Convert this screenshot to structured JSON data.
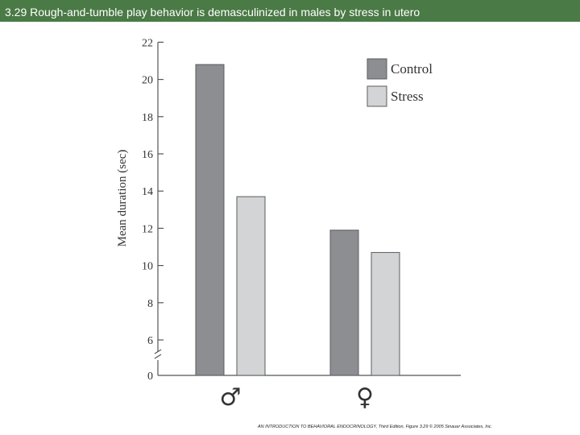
{
  "slide": {
    "title": "3.29 Rough-and-tumble play behavior is demasculinized in males by stress in utero",
    "credit": "AN INTRODUCTION TO BEHAVIORAL ENDOCRINOLOGY, Third Edition, Figure 3.29 © 2005 Sinauer Associates, Inc."
  },
  "chart_data": {
    "type": "bar",
    "title": "",
    "ylabel": "Mean duration (sec)",
    "xlabel": "",
    "categories": [
      "♂",
      "♀"
    ],
    "series": [
      {
        "name": "Control",
        "color": "#8c8e91",
        "values": [
          20.8,
          11.9
        ]
      },
      {
        "name": "Stress",
        "color": "#d3d4d6",
        "values": [
          13.7,
          10.7
        ]
      }
    ],
    "yticks": [
      0,
      6,
      8,
      10,
      12,
      14,
      16,
      18,
      20,
      22
    ],
    "ylim": [
      0,
      22
    ],
    "axis_break": "between 0 and 6",
    "legend_position": "top-right",
    "grid": false
  }
}
